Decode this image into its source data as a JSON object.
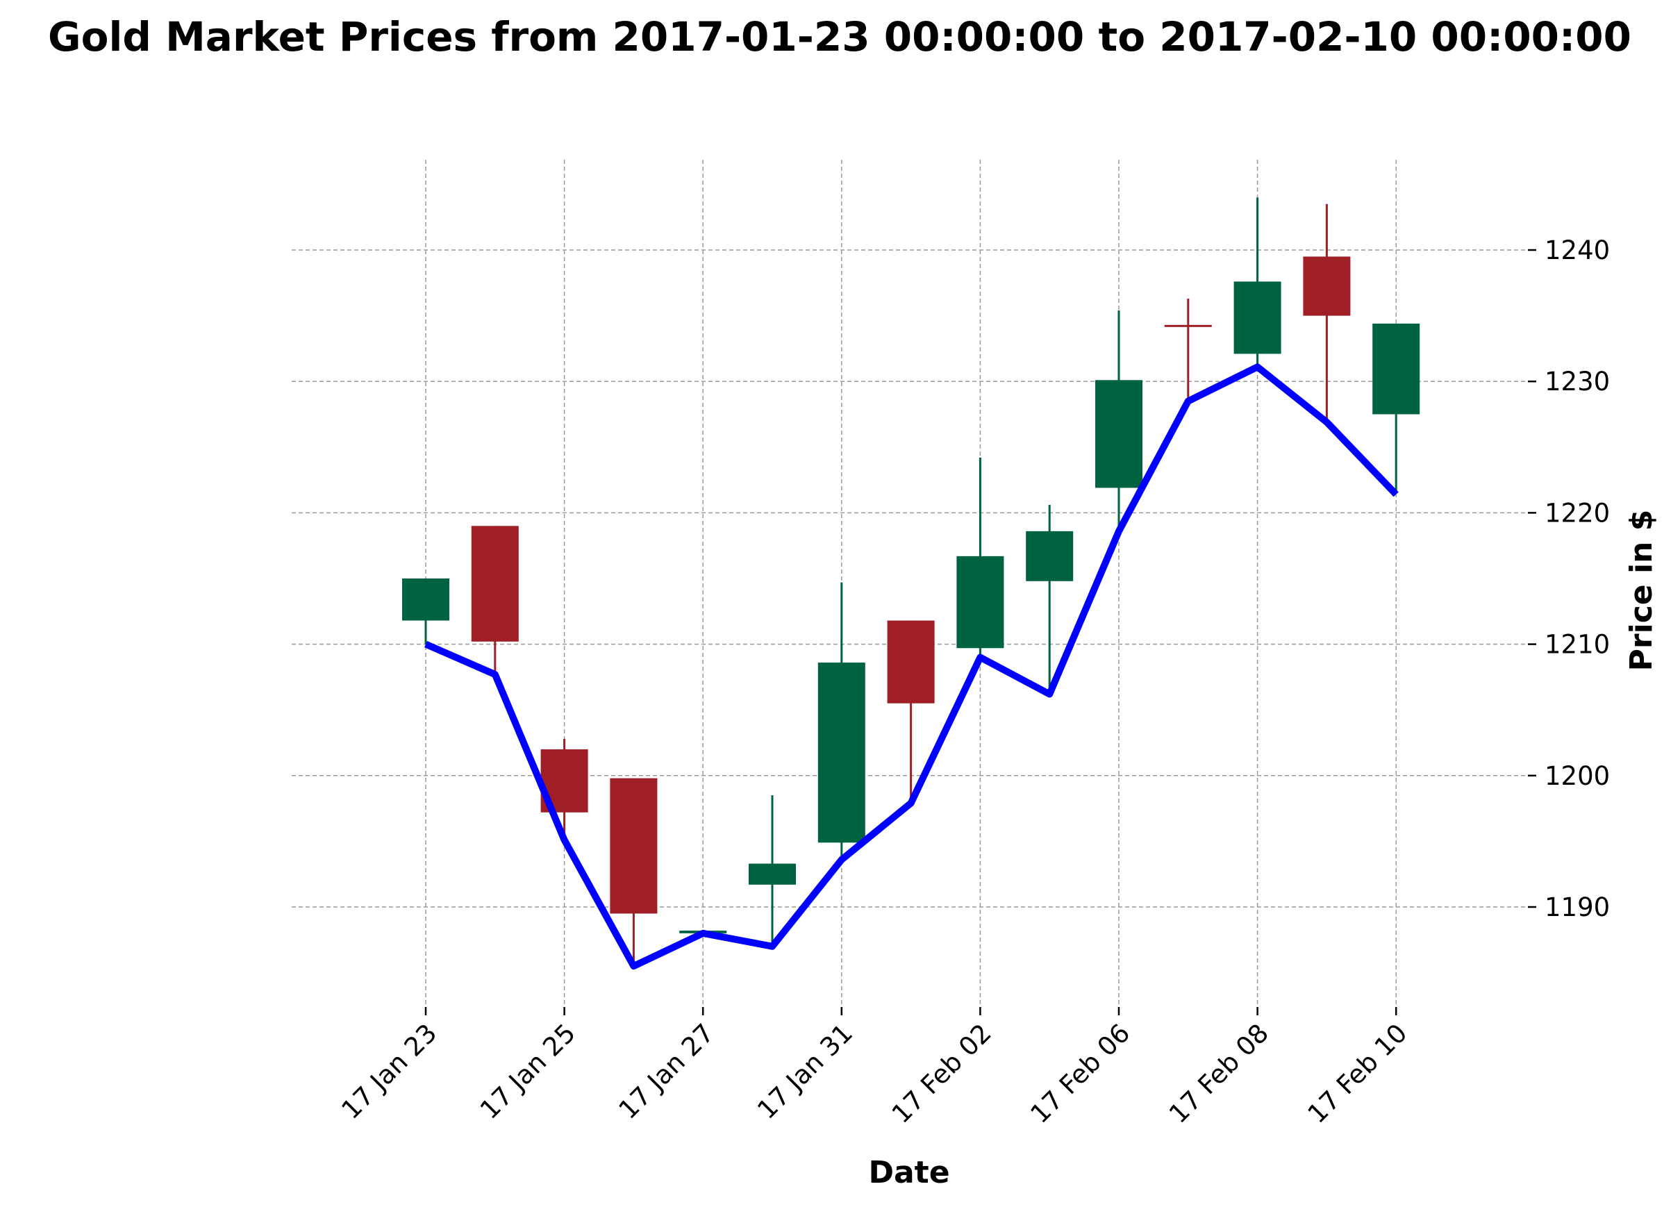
{
  "chart_data": {
    "type": "candlestick",
    "title": "Gold Market Prices from 2017-01-23 00:00:00 to 2017-02-10 00:00:00",
    "xlabel": "Date",
    "ylabel": "Price in $",
    "ylim": [
      1182.5,
      1247.5
    ],
    "yticks": [
      1190,
      1200,
      1210,
      1220,
      1230,
      1240
    ],
    "grid": true,
    "colors": {
      "up": "#006340",
      "down": "#a01f27",
      "line": "#0000ff"
    },
    "x_tick_labels": [
      {
        "index": 0,
        "label": "17 Jan 23"
      },
      {
        "index": 2,
        "label": "17 Jan 25"
      },
      {
        "index": 4,
        "label": "17 Jan 27"
      },
      {
        "index": 6,
        "label": "17 Jan 31"
      },
      {
        "index": 8,
        "label": "17 Feb 02"
      },
      {
        "index": 10,
        "label": "17 Feb 06"
      },
      {
        "index": 12,
        "label": "17 Feb 08"
      },
      {
        "index": 14,
        "label": "17 Feb 10"
      }
    ],
    "candles": [
      {
        "date": "2017-01-23",
        "open": 1211.8,
        "high": 1215.0,
        "low": 1210.0,
        "close": 1215.0
      },
      {
        "date": "2017-01-24",
        "open": 1219.0,
        "high": 1219.0,
        "low": 1207.5,
        "close": 1210.2
      },
      {
        "date": "2017-01-25",
        "open": 1202.0,
        "high": 1202.8,
        "low": 1195.0,
        "close": 1197.2
      },
      {
        "date": "2017-01-26",
        "open": 1199.8,
        "high": 1199.8,
        "low": 1185.5,
        "close": 1189.5
      },
      {
        "date": "2017-01-27",
        "open": 1188.0,
        "high": 1188.2,
        "low": 1187.8,
        "close": 1188.2
      },
      {
        "date": "2017-01-30",
        "open": 1191.7,
        "high": 1198.5,
        "low": 1186.8,
        "close": 1193.3
      },
      {
        "date": "2017-01-31",
        "open": 1194.9,
        "high": 1214.7,
        "low": 1193.5,
        "close": 1208.6
      },
      {
        "date": "2017-02-01",
        "open": 1211.8,
        "high": 1211.8,
        "low": 1198.0,
        "close": 1205.5
      },
      {
        "date": "2017-02-02",
        "open": 1209.7,
        "high": 1224.2,
        "low": 1209.0,
        "close": 1216.7
      },
      {
        "date": "2017-02-03",
        "open": 1214.8,
        "high": 1220.6,
        "low": 1206.3,
        "close": 1218.6
      },
      {
        "date": "2017-02-06",
        "open": 1221.9,
        "high": 1235.4,
        "low": 1218.5,
        "close": 1230.1
      },
      {
        "date": "2017-02-07",
        "open": 1234.3,
        "high": 1236.3,
        "low": 1228.5,
        "close": 1234.2
      },
      {
        "date": "2017-02-08",
        "open": 1232.1,
        "high": 1244.0,
        "low": 1231.0,
        "close": 1237.6
      },
      {
        "date": "2017-02-09",
        "open": 1239.5,
        "high": 1243.5,
        "low": 1227.0,
        "close": 1235.0
      },
      {
        "date": "2017-02-10",
        "open": 1227.5,
        "high": 1234.4,
        "low": 1221.5,
        "close": 1234.4
      }
    ],
    "line_series": {
      "values": [
        1210.0,
        1207.7,
        1195.1,
        1185.5,
        1188.0,
        1187.0,
        1193.6,
        1197.9,
        1209.0,
        1206.2,
        1218.6,
        1228.5,
        1231.1,
        1226.9,
        1221.4
      ]
    }
  }
}
